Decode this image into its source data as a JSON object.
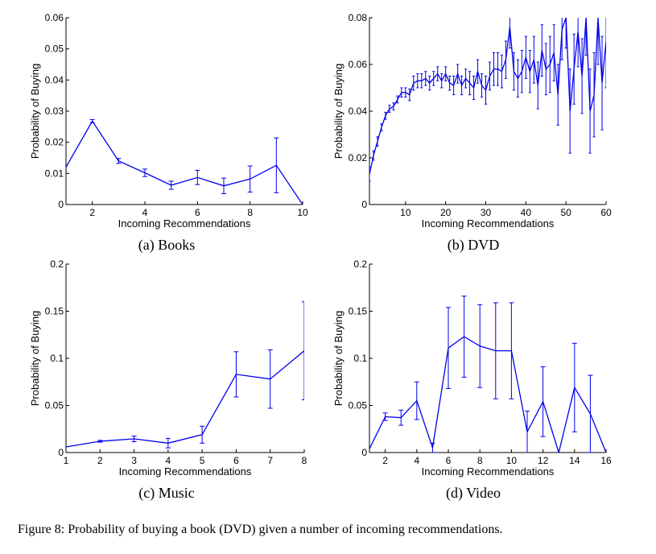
{
  "caption": "Figure 8: Probability of buying a book (DVD) given a number of incoming recommendations.",
  "colors": {
    "series": "#0000ee",
    "axis": "#000000"
  },
  "chart_data": [
    {
      "type": "line",
      "subcaption": "(a) Books",
      "xlabel": "Incoming Recommendations",
      "ylabel": "Probability of Buying",
      "xlim": [
        1,
        10
      ],
      "ylim": [
        0,
        0.06
      ],
      "xticks": [
        "2",
        "4",
        "6",
        "8",
        "10"
      ],
      "yticks": [
        "0",
        "0.01",
        "0.02",
        "0.03",
        "0.04",
        "0.05",
        "0.06"
      ],
      "series": [
        {
          "x": [
            1,
            2,
            3,
            4,
            5,
            6,
            7,
            8,
            9,
            10
          ],
          "y": [
            0.012,
            0.0268,
            0.014,
            0.0102,
            0.0062,
            0.0087,
            0.006,
            0.0082,
            0.0126,
            0.0
          ],
          "err": [
            0,
            0.0005,
            0.0008,
            0.0012,
            0.0013,
            0.0023,
            0.0025,
            0.0042,
            0.0088,
            0
          ]
        }
      ]
    },
    {
      "type": "line",
      "subcaption": "(b) DVD",
      "xlabel": "Incoming Recommendations",
      "ylabel": "Probability of Buying",
      "xlim": [
        1,
        60
      ],
      "ylim": [
        0,
        0.08
      ],
      "xticks": [
        "10",
        "20",
        "30",
        "40",
        "50",
        "60"
      ],
      "yticks": [
        "0",
        "0.02",
        "0.04",
        "0.06",
        "0.08"
      ],
      "series": [
        {
          "x": [
            1,
            2,
            3,
            4,
            5,
            6,
            7,
            8,
            9,
            10,
            11,
            12,
            13,
            14,
            15,
            16,
            17,
            18,
            19,
            20,
            21,
            22,
            23,
            24,
            25,
            26,
            27,
            28,
            29,
            30,
            31,
            32,
            33,
            34,
            35,
            36,
            37,
            38,
            39,
            40,
            41,
            42,
            43,
            44,
            45,
            46,
            47,
            48,
            49,
            50,
            51,
            52,
            53,
            54,
            55,
            56,
            57,
            58,
            59,
            60
          ],
          "y": [
            0.013,
            0.021,
            0.027,
            0.033,
            0.038,
            0.041,
            0.042,
            0.045,
            0.048,
            0.048,
            0.047,
            0.052,
            0.053,
            0.053,
            0.054,
            0.052,
            0.054,
            0.056,
            0.053,
            0.056,
            0.052,
            0.051,
            0.056,
            0.051,
            0.054,
            0.052,
            0.05,
            0.057,
            0.051,
            0.049,
            0.055,
            0.058,
            0.058,
            0.057,
            0.062,
            0.076,
            0.057,
            0.054,
            0.057,
            0.063,
            0.057,
            0.062,
            0.051,
            0.066,
            0.058,
            0.06,
            0.065,
            0.047,
            0.075,
            0.08,
            0.04,
            0.058,
            0.074,
            0.055,
            0.08,
            0.04,
            0.047,
            0.08,
            0.052,
            0.07
          ],
          "err": [
            0.003,
            0.002,
            0.002,
            0.0015,
            0.0015,
            0.0015,
            0.0015,
            0.0015,
            0.002,
            0.002,
            0.0025,
            0.003,
            0.003,
            0.003,
            0.003,
            0.003,
            0.003,
            0.003,
            0.003,
            0.003,
            0.003,
            0.004,
            0.004,
            0.004,
            0.004,
            0.005,
            0.005,
            0.005,
            0.005,
            0.006,
            0.006,
            0.007,
            0.007,
            0.007,
            0.008,
            0.009,
            0.008,
            0.008,
            0.009,
            0.009,
            0.009,
            0.01,
            0.01,
            0.011,
            0.011,
            0.012,
            0.012,
            0.013,
            0.013,
            0.013,
            0.018,
            0.015,
            0.015,
            0.016,
            0.016,
            0.018,
            0.018,
            0.02,
            0.02,
            0.02
          ]
        }
      ]
    },
    {
      "type": "line",
      "subcaption": "(c) Music",
      "xlabel": "Incoming Recommendations",
      "ylabel": "Probability of Buying",
      "xlim": [
        1,
        8
      ],
      "ylim": [
        0,
        0.2
      ],
      "xticks": [
        "1",
        "2",
        "3",
        "4",
        "5",
        "6",
        "7",
        "8"
      ],
      "yticks": [
        "0",
        "0.05",
        "0.1",
        "0.15",
        "0.2"
      ],
      "series": [
        {
          "x": [
            1,
            2,
            3,
            4,
            5,
            6,
            7,
            8
          ],
          "y": [
            0.006,
            0.012,
            0.0145,
            0.01,
            0.019,
            0.083,
            0.078,
            0.108
          ],
          "err": [
            0,
            0.001,
            0.003,
            0.005,
            0.009,
            0.024,
            0.031,
            0.052
          ]
        }
      ]
    },
    {
      "type": "line",
      "subcaption": "(d) Video",
      "xlabel": "Incoming Recommendations",
      "ylabel": "Probability of Buying",
      "xlim": [
        1,
        16
      ],
      "ylim": [
        0,
        0.2
      ],
      "xticks": [
        "2",
        "4",
        "6",
        "8",
        "10",
        "12",
        "14",
        "16"
      ],
      "yticks": [
        "0",
        "0.05",
        "0.1",
        "0.15",
        "0.2"
      ],
      "series": [
        {
          "x": [
            1,
            2,
            3,
            4,
            5,
            6,
            7,
            8,
            9,
            10,
            11,
            12,
            13,
            14,
            15,
            16
          ],
          "y": [
            0.004,
            0.038,
            0.037,
            0.055,
            0.005,
            0.111,
            0.123,
            0.113,
            0.108,
            0.108,
            0.022,
            0.054,
            0.0,
            0.069,
            0.041,
            0.0
          ],
          "err": [
            0,
            0.004,
            0.008,
            0.02,
            0.005,
            0.043,
            0.043,
            0.044,
            0.051,
            0.051,
            0.022,
            0.037,
            0,
            0.047,
            0.041,
            0
          ]
        }
      ]
    }
  ]
}
